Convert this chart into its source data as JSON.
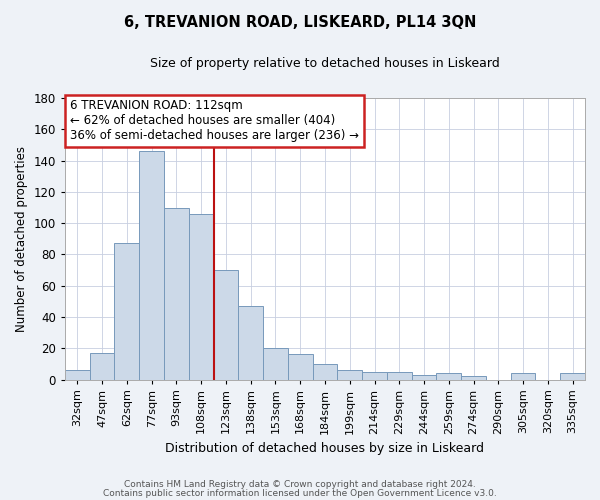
{
  "title": "6, TREVANION ROAD, LISKEARD, PL14 3QN",
  "subtitle": "Size of property relative to detached houses in Liskeard",
  "xlabel": "Distribution of detached houses by size in Liskeard",
  "ylabel": "Number of detached properties",
  "bar_labels": [
    "32sqm",
    "47sqm",
    "62sqm",
    "77sqm",
    "93sqm",
    "108sqm",
    "123sqm",
    "138sqm",
    "153sqm",
    "168sqm",
    "184sqm",
    "199sqm",
    "214sqm",
    "229sqm",
    "244sqm",
    "259sqm",
    "274sqm",
    "290sqm",
    "305sqm",
    "320sqm",
    "335sqm"
  ],
  "bar_heights": [
    6,
    17,
    87,
    146,
    110,
    106,
    70,
    47,
    20,
    16,
    10,
    6,
    5,
    5,
    3,
    4,
    2,
    0,
    4,
    0,
    4
  ],
  "bar_color": "#ccd9e8",
  "bar_edge_color": "#7799bb",
  "bar_width": 1.0,
  "vline_x": 5.5,
  "vline_color": "#bb1111",
  "annotation_title": "6 TREVANION ROAD: 112sqm",
  "annotation_line1": "← 62% of detached houses are smaller (404)",
  "annotation_line2": "36% of semi-detached houses are larger (236) →",
  "annotation_box_color": "#ffffff",
  "annotation_box_edge": "#cc2222",
  "ylim": [
    0,
    180
  ],
  "yticks": [
    0,
    20,
    40,
    60,
    80,
    100,
    120,
    140,
    160,
    180
  ],
  "footer1": "Contains HM Land Registry data © Crown copyright and database right 2024.",
  "footer2": "Contains public sector information licensed under the Open Government Licence v3.0.",
  "bg_color": "#eef2f7",
  "plot_bg_color": "#ffffff",
  "grid_color": "#c8cfe0"
}
